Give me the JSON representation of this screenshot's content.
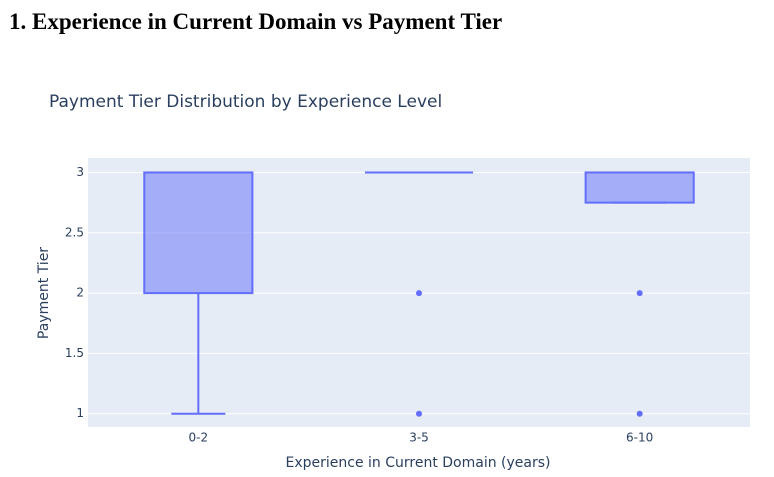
{
  "heading": "1. Experience in Current Domain vs Payment Tier",
  "chart_data": {
    "type": "box",
    "title": "Payment Tier Distribution by Experience Level",
    "x_label": "Experience in Current Domain (years)",
    "y_label": "Payment Tier",
    "categories": [
      "0-2",
      "3-5",
      "6-10"
    ],
    "color": "#636efa",
    "boxes": [
      {
        "min": 1,
        "q1": 2,
        "median": 3,
        "q3": 3,
        "max": 3
      },
      {
        "min": 3,
        "q1": 3,
        "median": 3,
        "q3": 3,
        "max": 3,
        "outliers": [
          1,
          2
        ]
      },
      {
        "min": 2.75,
        "q1": 2.75,
        "median": 3,
        "q3": 3,
        "max": 3,
        "outliers": [
          1,
          2
        ]
      }
    ],
    "ylim": [
      0.89,
      3.12
    ],
    "yticks": [
      1,
      1.5,
      2,
      2.5,
      3
    ],
    "grid": true
  }
}
